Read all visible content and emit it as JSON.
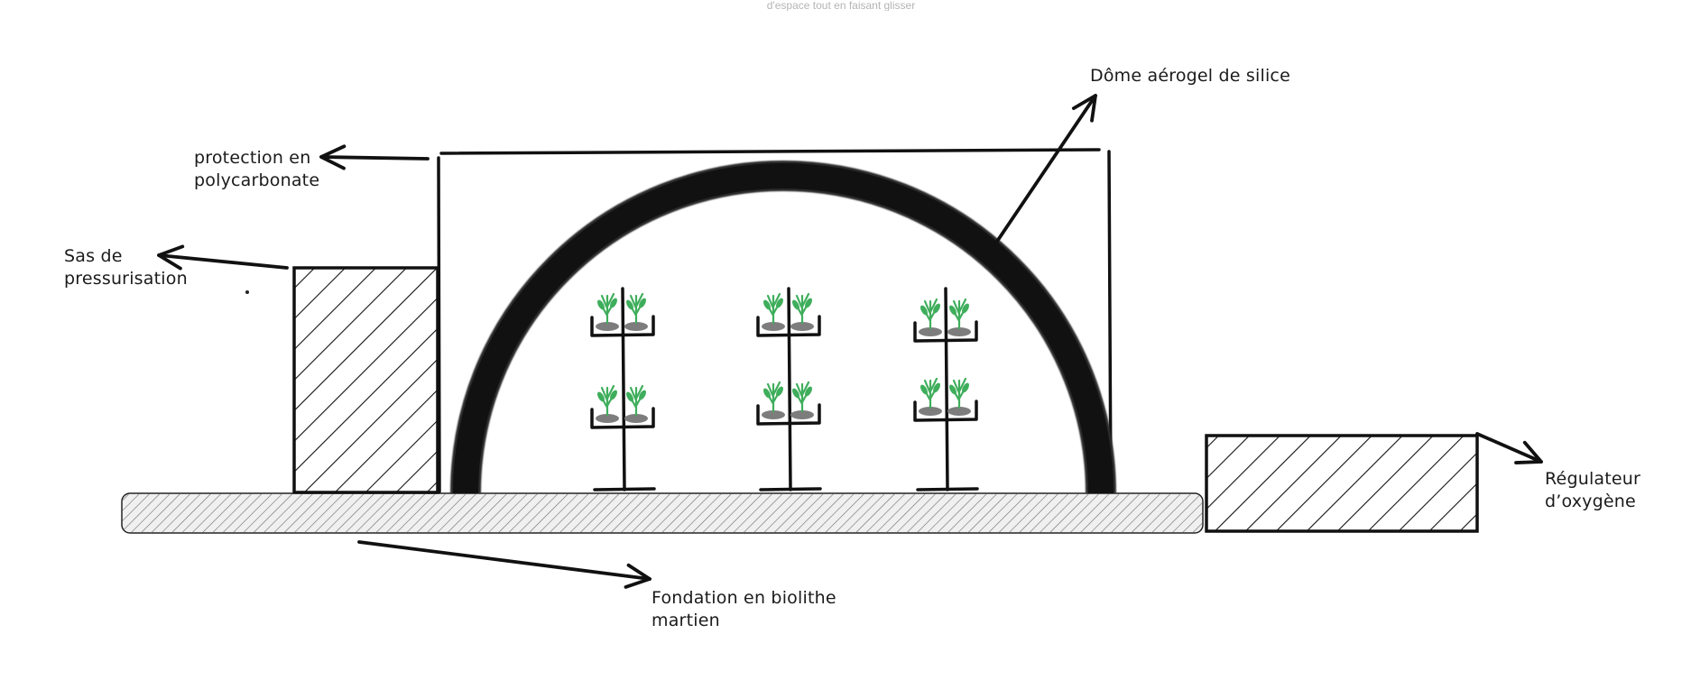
{
  "hint_text": "d'espace tout en faisant glisser",
  "labels": {
    "dome": [
      "Dôme aérogel de silice"
    ],
    "protection": [
      "protection en",
      "polycarbonate"
    ],
    "sas": [
      "Sas de",
      "pressurisation"
    ],
    "regulateur": [
      "Régulateur",
      "d’oxygène"
    ],
    "fondation": [
      "Fondation en biolithe",
      "martien"
    ]
  },
  "icons": {
    "plant": "sprout-icon",
    "arrow": "arrow-icon"
  },
  "colors": {
    "ink": "#111111",
    "plant_green": "#3fae5c",
    "soil_gray": "#7d7d7d",
    "ground_fill": "#e6e6e6",
    "hint_gray": "#b4b4b4"
  }
}
